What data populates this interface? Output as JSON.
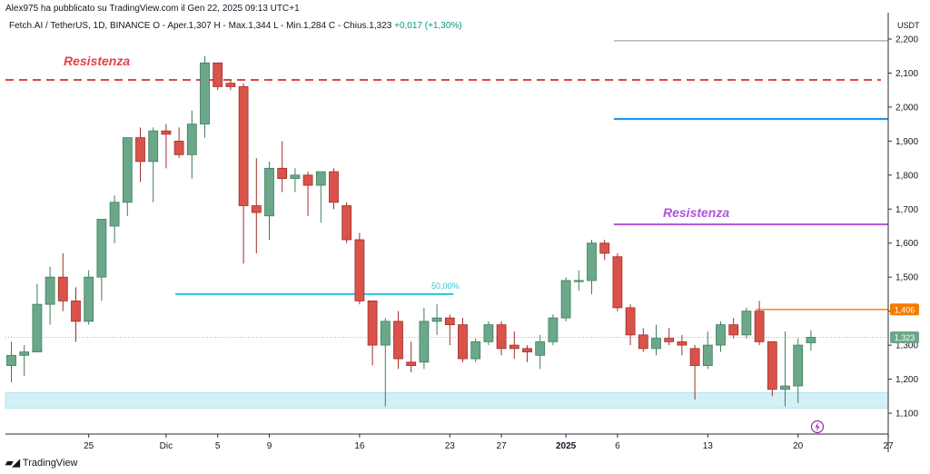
{
  "header": {
    "author_line": "Alex975 ha pubblicato su TradingView.com il Gen 22, 2025 09:13 UTC+1",
    "symbol": "Fetch.AI / TetherUS, 1D, BINANCE",
    "ohlc": "O - Aper.1,307  H - Max.1,344  L - Min.1,284  C - Chius.1,323",
    "change": "+0,017 (+1,30%)"
  },
  "footer": {
    "logo_text": "TradingView"
  },
  "colors": {
    "up": "#6ba889",
    "down": "#d9534a",
    "resist_red": "#e0434a",
    "resist_blue": "#2196f3",
    "resist_purple": "#b054d8",
    "resist_orange": "#f57c00",
    "support_zone": "#d3f0f7",
    "fib_line": "#21c8d4"
  },
  "chart_data": {
    "type": "candlestick",
    "y_unit": "USDT",
    "ylim": [
      1.06,
      2.21
    ],
    "yticks": [
      "2,200",
      "2,100",
      "2,000",
      "1,900",
      "1,800",
      "1,700",
      "1,600",
      "1,500",
      "1,400",
      "1,300",
      "1,200",
      "1,100"
    ],
    "ytick_values": [
      2.2,
      2.1,
      2.0,
      1.9,
      1.8,
      1.7,
      1.6,
      1.5,
      1.4,
      1.3,
      1.2,
      1.1
    ],
    "xticks": [
      {
        "label": "25",
        "day": 6,
        "bold": false
      },
      {
        "label": "Dic",
        "day": 12,
        "bold": false
      },
      {
        "label": "5",
        "day": 16,
        "bold": false
      },
      {
        "label": "9",
        "day": 20,
        "bold": false
      },
      {
        "label": "16",
        "day": 27,
        "bold": false
      },
      {
        "label": "23",
        "day": 34,
        "bold": false
      },
      {
        "label": "27",
        "day": 38,
        "bold": false
      },
      {
        "label": "2025",
        "day": 43,
        "bold": true
      },
      {
        "label": "6",
        "day": 47,
        "bold": false
      },
      {
        "label": "13",
        "day": 54,
        "bold": false
      },
      {
        "label": "20",
        "day": 61,
        "bold": false
      },
      {
        "label": "27",
        "day": 68,
        "bold": false
      }
    ],
    "candles": [
      {
        "o": 1.24,
        "h": 1.31,
        "l": 1.19,
        "c": 1.27
      },
      {
        "o": 1.27,
        "h": 1.3,
        "l": 1.21,
        "c": 1.28
      },
      {
        "o": 1.28,
        "h": 1.48,
        "l": 1.28,
        "c": 1.42
      },
      {
        "o": 1.42,
        "h": 1.53,
        "l": 1.36,
        "c": 1.5
      },
      {
        "o": 1.5,
        "h": 1.57,
        "l": 1.4,
        "c": 1.43
      },
      {
        "o": 1.43,
        "h": 1.47,
        "l": 1.31,
        "c": 1.37
      },
      {
        "o": 1.37,
        "h": 1.52,
        "l": 1.36,
        "c": 1.5
      },
      {
        "o": 1.5,
        "h": 1.67,
        "l": 1.43,
        "c": 1.67
      },
      {
        "o": 1.65,
        "h": 1.74,
        "l": 1.6,
        "c": 1.72
      },
      {
        "o": 1.72,
        "h": 1.91,
        "l": 1.68,
        "c": 1.91
      },
      {
        "o": 1.91,
        "h": 1.94,
        "l": 1.78,
        "c": 1.84
      },
      {
        "o": 1.84,
        "h": 1.94,
        "l": 1.72,
        "c": 1.93
      },
      {
        "o": 1.93,
        "h": 1.95,
        "l": 1.82,
        "c": 1.92
      },
      {
        "o": 1.9,
        "h": 1.94,
        "l": 1.85,
        "c": 1.86
      },
      {
        "o": 1.86,
        "h": 1.99,
        "l": 1.79,
        "c": 1.95
      },
      {
        "o": 1.95,
        "h": 2.15,
        "l": 1.91,
        "c": 2.13
      },
      {
        "o": 2.13,
        "h": 2.13,
        "l": 2.05,
        "c": 2.06
      },
      {
        "o": 2.07,
        "h": 2.08,
        "l": 2.05,
        "c": 2.06
      },
      {
        "o": 2.06,
        "h": 2.07,
        "l": 1.54,
        "c": 1.71
      },
      {
        "o": 1.71,
        "h": 1.85,
        "l": 1.57,
        "c": 1.69
      },
      {
        "o": 1.68,
        "h": 1.84,
        "l": 1.61,
        "c": 1.82
      },
      {
        "o": 1.82,
        "h": 1.9,
        "l": 1.75,
        "c": 1.79
      },
      {
        "o": 1.79,
        "h": 1.82,
        "l": 1.75,
        "c": 1.8
      },
      {
        "o": 1.8,
        "h": 1.81,
        "l": 1.68,
        "c": 1.77
      },
      {
        "o": 1.77,
        "h": 1.81,
        "l": 1.66,
        "c": 1.81
      },
      {
        "o": 1.81,
        "h": 1.82,
        "l": 1.7,
        "c": 1.72
      },
      {
        "o": 1.71,
        "h": 1.72,
        "l": 1.6,
        "c": 1.61
      },
      {
        "o": 1.61,
        "h": 1.63,
        "l": 1.42,
        "c": 1.43
      },
      {
        "o": 1.43,
        "h": 1.43,
        "l": 1.24,
        "c": 1.3
      },
      {
        "o": 1.3,
        "h": 1.38,
        "l": 1.12,
        "c": 1.37
      },
      {
        "o": 1.37,
        "h": 1.4,
        "l": 1.23,
        "c": 1.26
      },
      {
        "o": 1.25,
        "h": 1.31,
        "l": 1.22,
        "c": 1.24
      },
      {
        "o": 1.25,
        "h": 1.41,
        "l": 1.23,
        "c": 1.37
      },
      {
        "o": 1.37,
        "h": 1.42,
        "l": 1.33,
        "c": 1.38
      },
      {
        "o": 1.38,
        "h": 1.39,
        "l": 1.3,
        "c": 1.36
      },
      {
        "o": 1.36,
        "h": 1.38,
        "l": 1.25,
        "c": 1.26
      },
      {
        "o": 1.26,
        "h": 1.32,
        "l": 1.25,
        "c": 1.31
      },
      {
        "o": 1.31,
        "h": 1.37,
        "l": 1.3,
        "c": 1.36
      },
      {
        "o": 1.36,
        "h": 1.37,
        "l": 1.27,
        "c": 1.29
      },
      {
        "o": 1.3,
        "h": 1.34,
        "l": 1.26,
        "c": 1.29
      },
      {
        "o": 1.29,
        "h": 1.3,
        "l": 1.25,
        "c": 1.28
      },
      {
        "o": 1.27,
        "h": 1.33,
        "l": 1.23,
        "c": 1.31
      },
      {
        "o": 1.31,
        "h": 1.39,
        "l": 1.3,
        "c": 1.38
      },
      {
        "o": 1.38,
        "h": 1.5,
        "l": 1.37,
        "c": 1.49
      },
      {
        "o": 1.49,
        "h": 1.52,
        "l": 1.46,
        "c": 1.49
      },
      {
        "o": 1.49,
        "h": 1.61,
        "l": 1.45,
        "c": 1.6
      },
      {
        "o": 1.6,
        "h": 1.61,
        "l": 1.55,
        "c": 1.57
      },
      {
        "o": 1.56,
        "h": 1.57,
        "l": 1.4,
        "c": 1.41
      },
      {
        "o": 1.41,
        "h": 1.42,
        "l": 1.3,
        "c": 1.33
      },
      {
        "o": 1.33,
        "h": 1.35,
        "l": 1.28,
        "c": 1.29
      },
      {
        "o": 1.29,
        "h": 1.36,
        "l": 1.27,
        "c": 1.32
      },
      {
        "o": 1.32,
        "h": 1.35,
        "l": 1.3,
        "c": 1.31
      },
      {
        "o": 1.31,
        "h": 1.33,
        "l": 1.27,
        "c": 1.3
      },
      {
        "o": 1.29,
        "h": 1.3,
        "l": 1.14,
        "c": 1.24
      },
      {
        "o": 1.24,
        "h": 1.34,
        "l": 1.23,
        "c": 1.3
      },
      {
        "o": 1.3,
        "h": 1.37,
        "l": 1.28,
        "c": 1.36
      },
      {
        "o": 1.36,
        "h": 1.38,
        "l": 1.32,
        "c": 1.33
      },
      {
        "o": 1.33,
        "h": 1.41,
        "l": 1.32,
        "c": 1.4
      },
      {
        "o": 1.4,
        "h": 1.43,
        "l": 1.3,
        "c": 1.31
      },
      {
        "o": 1.31,
        "h": 1.31,
        "l": 1.15,
        "c": 1.17
      },
      {
        "o": 1.17,
        "h": 1.34,
        "l": 1.12,
        "c": 1.18
      },
      {
        "o": 1.18,
        "h": 1.32,
        "l": 1.13,
        "c": 1.3
      },
      {
        "o": 1.307,
        "h": 1.344,
        "l": 1.284,
        "c": 1.323
      }
    ],
    "annotations": {
      "resistance_red": {
        "label": "Resistenza",
        "value": 2.08
      },
      "resistance_purple": {
        "label": "Resistenza",
        "value": 1.655,
        "from_day": 47
      },
      "resistance_blue": {
        "value": 1.965,
        "from_day": 47
      },
      "resistance_gray": {
        "value": 2.195,
        "from_day": 47
      },
      "resistance_orange": {
        "value": 1.405,
        "from_day": 58,
        "badge": "1,406"
      },
      "fib_level": {
        "label": "50,00%",
        "value": 1.45,
        "from_day": 13,
        "to_day": 34
      },
      "support_zone": {
        "from": 1.115,
        "to": 1.16
      },
      "current_price": {
        "value": 1.323,
        "badge": "1,323"
      }
    }
  }
}
